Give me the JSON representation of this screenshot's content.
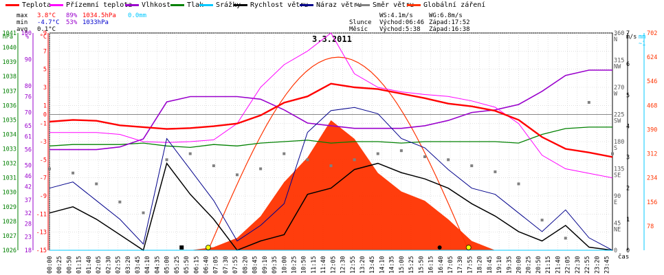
{
  "title": "3.3.2011",
  "legend": [
    {
      "label": "Teplota",
      "color": "#ff0000"
    },
    {
      "label": "Přízemní teplota",
      "color": "#ff00ff"
    },
    {
      "label": "Vlhkost",
      "color": "#9900cc"
    },
    {
      "label": "Tlak",
      "color": "#008000"
    },
    {
      "label": "Srážky",
      "color": "#00c8ff"
    },
    {
      "label": "Rychlost větru",
      "color": "#000000"
    },
    {
      "label": "Náraz větru",
      "color": "#00008b"
    },
    {
      "label": "Směr větru",
      "color": "#808080"
    },
    {
      "label": "Globální záření",
      "color": "#ff3300"
    }
  ],
  "stats": {
    "max_label": "max",
    "max_temp": "3.8°C",
    "max_hum": "89%",
    "max_press": "1034.5hPa",
    "max_rain": "0.0mm",
    "min_label": "min",
    "min_temp": "-4.7°C",
    "min_hum": "53%",
    "min_press": "1033hPa",
    "avg_label": "avg",
    "avg_temp": "0.1°C"
  },
  "sun": {
    "ws": "WS:4.1m/s",
    "wg": "WG:6.8m/s",
    "slunce_label": "Slunce",
    "slunce_rise": "Východ:06:46",
    "slunce_set": "Západ:17:52",
    "mesic_label": "Měsíc",
    "mesic_rise": "Východ:5:38",
    "mesic_set": "Západ:16:38"
  },
  "axes": {
    "press_unit": "hPa",
    "hum_unit": "%",
    "temp_unit": "°C",
    "dir_unit": "°",
    "wind_unit": "m/s",
    "rain_unit": "mm",
    "rain_top": "~1",
    "x_unit": "čas",
    "press_ticks": [
      "1041",
      "1040",
      "1039",
      "1038",
      "1037",
      "1036",
      "1035",
      "1034",
      "1033",
      "1032",
      "1031",
      "1030",
      "1029",
      "1028",
      "1027",
      "1026"
    ],
    "hum_ticks": [
      "100",
      "90",
      "80",
      "76",
      "70",
      "65",
      "61",
      "56",
      "50",
      "46",
      "42",
      "37",
      "32",
      "28",
      "23",
      "18"
    ],
    "temp_ticks": [
      "9",
      "7",
      "5",
      "3",
      "1",
      "0",
      "-1",
      "-3",
      "-5",
      "-7",
      "-9",
      "-11",
      "-13",
      "-15"
    ],
    "dir_ticks": [
      "360 N",
      "315 NW",
      "270 W",
      "225 SW",
      "180 S",
      "135 SE",
      "90 E",
      "45 NE",
      "0"
    ],
    "wind_ticks": [
      "7",
      "6",
      "5",
      "4",
      "3",
      "2",
      "1",
      "0"
    ],
    "rad_ticks": [
      "702",
      "624",
      "546",
      "468",
      "390",
      "312",
      "234",
      "156",
      "78"
    ],
    "x_ticks": [
      "00:00",
      "00:25",
      "00:50",
      "01:15",
      "01:40",
      "02:05",
      "02:30",
      "02:55",
      "03:20",
      "03:45",
      "04:10",
      "04:35",
      "05:00",
      "05:25",
      "05:50",
      "06:15",
      "06:40",
      "07:05",
      "07:30",
      "07:55",
      "08:20",
      "08:45",
      "09:10",
      "09:35",
      "10:00",
      "10:25",
      "10:50",
      "11:15",
      "11:40",
      "12:05",
      "12:30",
      "12:55",
      "13:20",
      "13:45",
      "14:10",
      "14:35",
      "15:00",
      "15:25",
      "15:50",
      "16:15",
      "16:40",
      "17:05",
      "17:30",
      "17:55",
      "18:20",
      "18:45",
      "19:10",
      "19:35",
      "20:00",
      "20:25",
      "20:50",
      "21:15",
      "21:40",
      "22:05",
      "22:30",
      "22:55",
      "23:20",
      "23:45"
    ]
  },
  "chart_data": {
    "type": "line",
    "title": "3.3.2011",
    "x_range": [
      "00:00",
      "24:00"
    ],
    "x": [
      0,
      1,
      2,
      3,
      4,
      5,
      6,
      7,
      8,
      9,
      10,
      11,
      12,
      13,
      14,
      15,
      16,
      17,
      18,
      19,
      20,
      21,
      22,
      23,
      24
    ],
    "series": [
      {
        "name": "Teplota",
        "unit": "°C",
        "values": [
          -0.8,
          -0.6,
          -0.7,
          -1.2,
          -1.4,
          -1.6,
          -1.5,
          -1.3,
          -1.0,
          -0.1,
          1.3,
          2.0,
          3.4,
          3.0,
          2.8,
          2.3,
          1.8,
          1.2,
          0.9,
          0.4,
          -0.6,
          -2.5,
          -3.8,
          -4.2,
          -4.7
        ]
      },
      {
        "name": "Přízemní teplota",
        "unit": "°C",
        "values": [
          -2.0,
          -2.0,
          -2.0,
          -2.2,
          -3.0,
          -3.1,
          -3.0,
          -2.8,
          -1.0,
          3.0,
          5.5,
          7.0,
          9.0,
          4.5,
          3.0,
          2.5,
          2.2,
          2.0,
          1.5,
          0.8,
          -1.0,
          -4.5,
          -6.0,
          -6.5,
          -7.0
        ]
      },
      {
        "name": "Vlhkost",
        "unit": "%",
        "values": [
          56,
          56,
          56,
          57,
          60,
          74,
          76,
          76,
          76,
          75,
          71,
          66,
          65,
          64,
          64,
          64,
          65,
          67,
          70,
          71,
          73,
          78,
          84,
          86,
          86
        ]
      },
      {
        "name": "Tlak",
        "unit": "hPa",
        "values": [
          1033.2,
          1033.3,
          1033.3,
          1033.3,
          1033.4,
          1033.2,
          1033.1,
          1033.3,
          1033.2,
          1033.4,
          1033.5,
          1033.6,
          1033.4,
          1033.5,
          1033.5,
          1033.4,
          1033.5,
          1033.5,
          1033.5,
          1033.5,
          1033.4,
          1034.0,
          1034.4,
          1034.5,
          1034.5
        ]
      },
      {
        "name": "Rychlost větru",
        "unit": "m/s",
        "values": [
          1.2,
          1.4,
          1.0,
          0.5,
          0.0,
          2.8,
          1.8,
          1.0,
          0.0,
          0.3,
          0.5,
          1.8,
          2.0,
          2.6,
          2.8,
          2.5,
          2.3,
          2.0,
          1.5,
          1.1,
          0.6,
          0.3,
          0.8,
          0.1,
          0.0
        ]
      },
      {
        "name": "Náraz větru",
        "unit": "m/s",
        "values": [
          2.0,
          2.2,
          1.6,
          1.0,
          0.2,
          3.6,
          2.6,
          1.6,
          0.3,
          0.8,
          1.5,
          3.8,
          4.5,
          4.6,
          4.4,
          3.6,
          3.3,
          2.6,
          2.0,
          1.8,
          1.2,
          0.6,
          1.3,
          0.4,
          0.0
        ]
      },
      {
        "name": "Směr větru",
        "unit": "°",
        "values": [
          135,
          128,
          110,
          80,
          62,
          150,
          160,
          140,
          125,
          135,
          160,
          150,
          140,
          150,
          160,
          165,
          155,
          150,
          140,
          130,
          110,
          50,
          20,
          245,
          160
        ]
      },
      {
        "name": "Globální záření",
        "unit": "W/m²",
        "values": [
          0,
          0,
          0,
          0,
          0,
          0,
          0,
          10,
          40,
          110,
          220,
          300,
          420,
          360,
          250,
          190,
          160,
          100,
          30,
          0,
          0,
          0,
          0,
          0,
          0
        ]
      },
      {
        "name": "Srážky",
        "unit": "mm",
        "values": [
          0,
          0,
          0,
          0,
          0,
          0,
          0,
          0,
          0,
          0,
          0,
          0,
          0,
          0,
          0,
          0,
          0,
          0,
          0,
          0,
          0,
          0,
          0,
          0,
          0
        ]
      }
    ],
    "theoretical_radiation_max": 624,
    "ylim_temp": [
      -15,
      9
    ],
    "ylim_hum": [
      18,
      100
    ],
    "ylim_press": [
      1026,
      1041
    ],
    "ylim_dir": [
      0,
      360
    ],
    "ylim_wind": [
      0,
      7
    ],
    "ylim_rad": [
      0,
      702
    ],
    "grid": true
  }
}
